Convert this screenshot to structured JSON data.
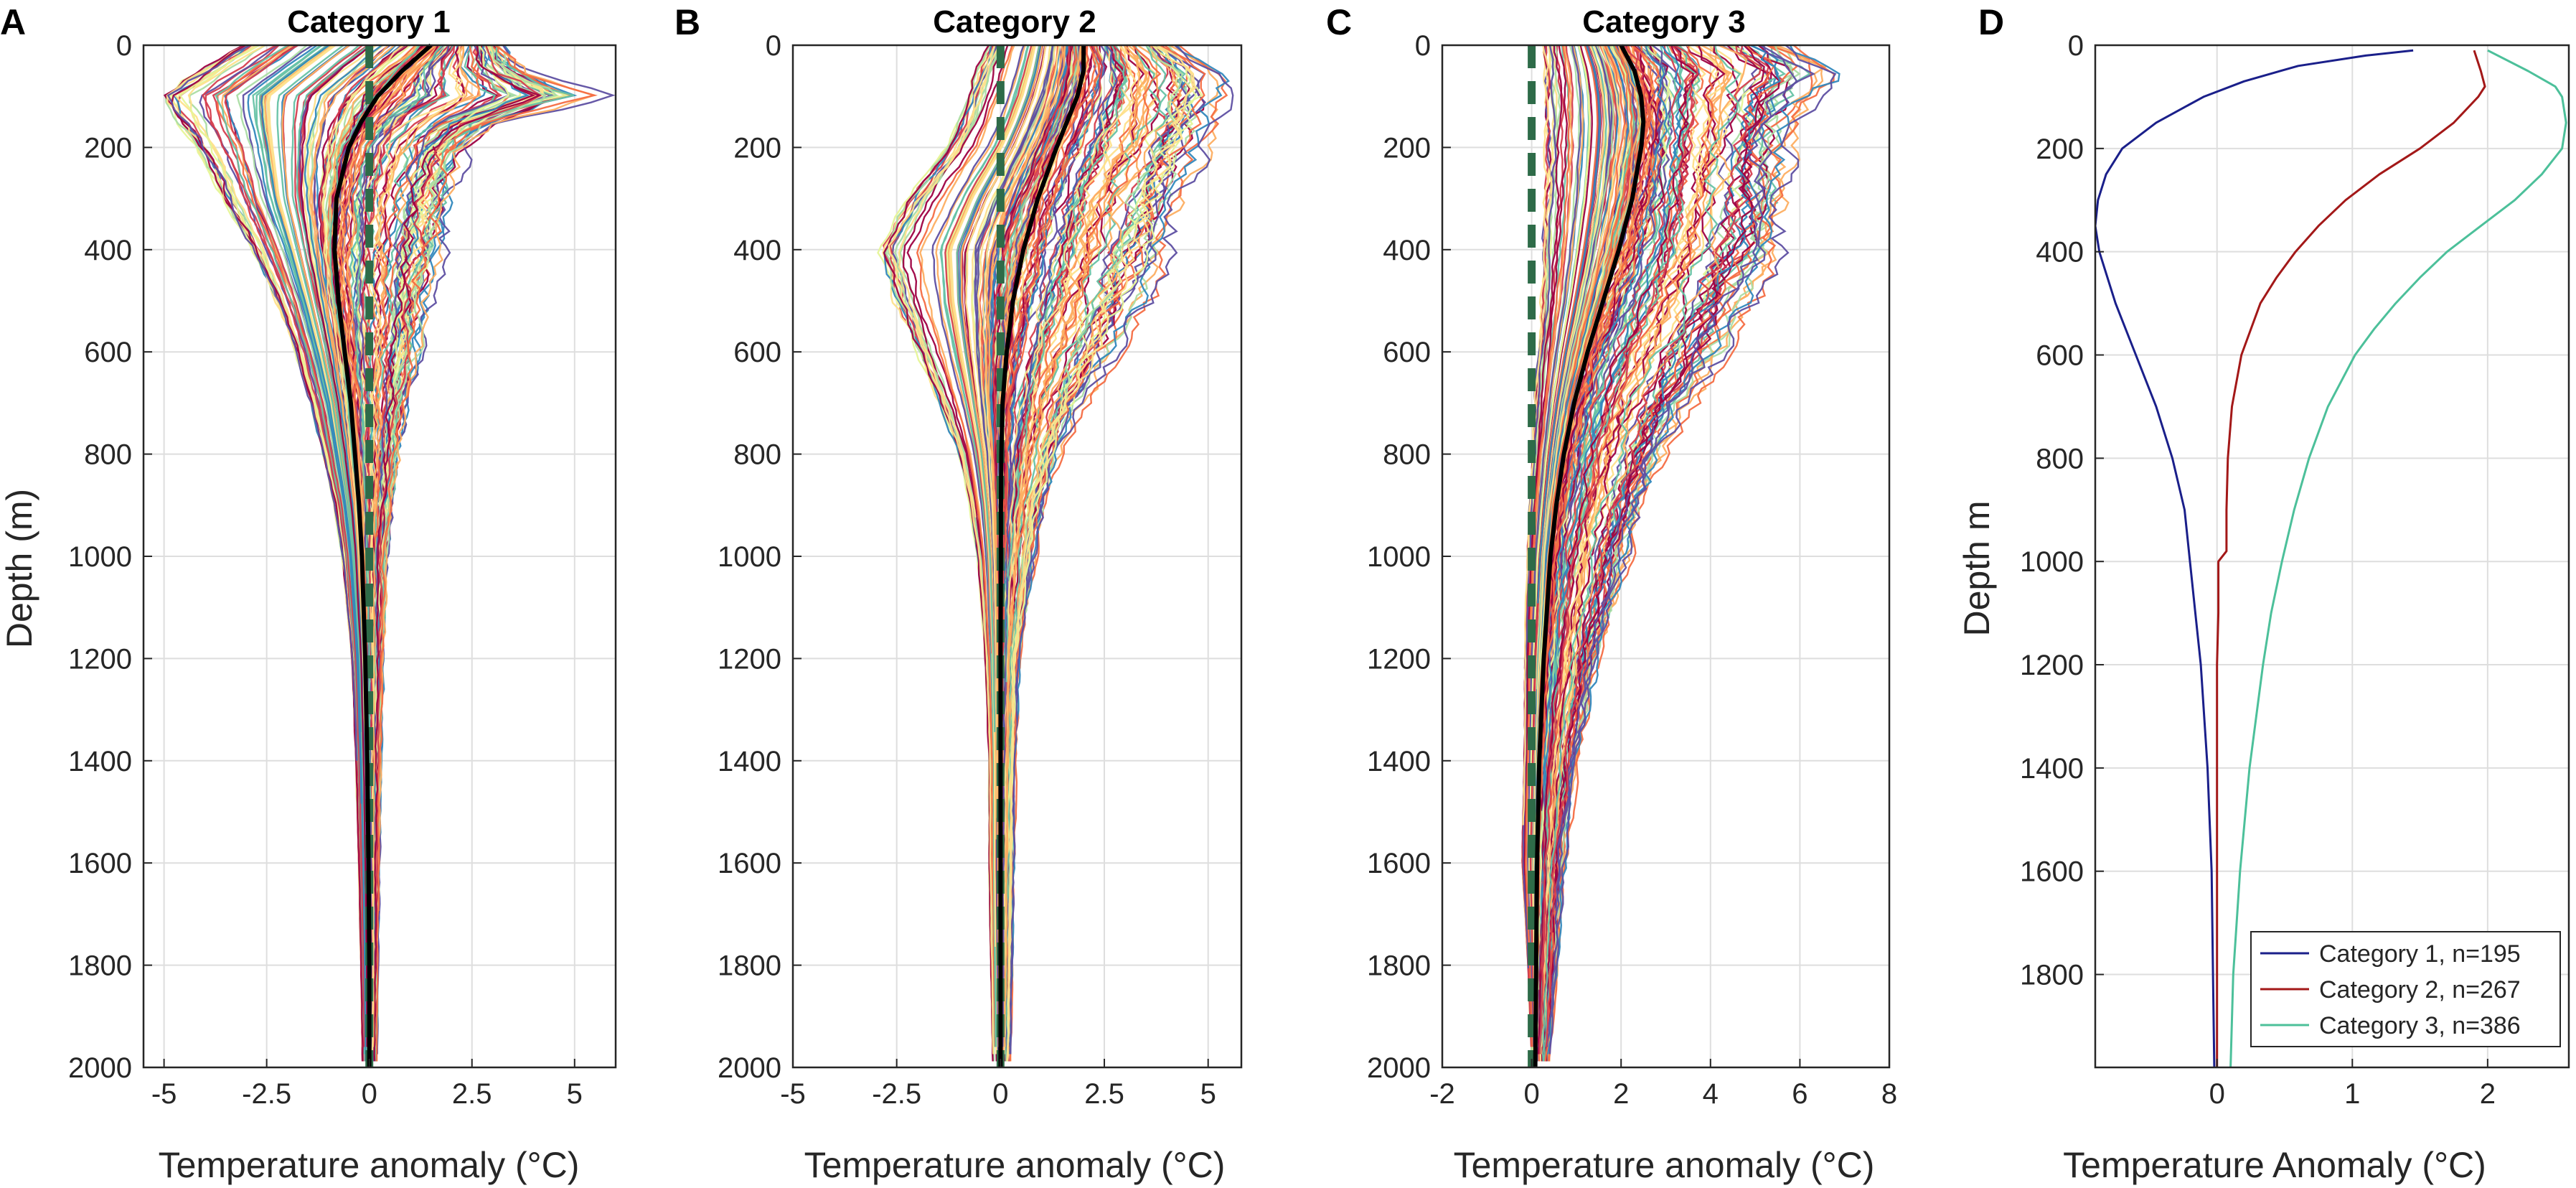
{
  "chart_data": [
    {
      "type": "line",
      "panel": "A",
      "title": "Category 1",
      "xlabel": "Temperature anomaly (°C)",
      "ylabel": "Depth (m)",
      "xlim": [
        -5.5,
        6
      ],
      "ylim": [
        0,
        2000
      ],
      "y_reversed": true,
      "grid": true,
      "xticks": [
        -5,
        -2.5,
        0,
        2.5,
        5
      ],
      "xtick_labels": [
        "-5",
        "-2.5",
        "0",
        "2.5",
        "5"
      ],
      "yticks": [
        0,
        200,
        400,
        600,
        800,
        1000,
        1200,
        1400,
        1600,
        1800,
        2000
      ],
      "ytick_labels": [
        "0",
        "200",
        "400",
        "600",
        "800",
        "1000",
        "1200",
        "1400",
        "1600",
        "1800",
        "2000"
      ],
      "profile_count": 195,
      "profile_envelope": {
        "depth": [
          0,
          50,
          100,
          150,
          200,
          300,
          400,
          500,
          600,
          700,
          800,
          900,
          1000,
          1200,
          1400,
          1600,
          1800,
          2000
        ],
        "min": [
          -3.5,
          -4.5,
          -5.5,
          -5.0,
          -4.5,
          -3.8,
          -3.0,
          -2.4,
          -1.9,
          -1.5,
          -1.2,
          -0.9,
          -0.7,
          -0.45,
          -0.35,
          -0.28,
          -0.22,
          -0.18
        ],
        "max": [
          3.5,
          4.2,
          6.0,
          3.5,
          2.6,
          2.3,
          2.0,
          1.7,
          1.4,
          1.1,
          0.9,
          0.7,
          0.5,
          0.4,
          0.33,
          0.28,
          0.24,
          0.2
        ]
      },
      "mean": {
        "name": "mean",
        "depth": [
          0,
          50,
          100,
          150,
          200,
          300,
          400,
          500,
          600,
          700,
          800,
          900,
          1000,
          1200,
          1400,
          1600,
          1800,
          2000
        ],
        "values": [
          1.5,
          0.8,
          0.2,
          -0.2,
          -0.5,
          -0.8,
          -0.85,
          -0.75,
          -0.6,
          -0.45,
          -0.35,
          -0.25,
          -0.18,
          -0.1,
          -0.05,
          -0.02,
          0,
          0
        ]
      },
      "reference": {
        "name": "zero line",
        "value": 0,
        "style": "dashed",
        "color": "#2e6b48"
      }
    },
    {
      "type": "line",
      "panel": "B",
      "title": "Category 2",
      "xlabel": "Temperature anomaly (°C)",
      "ylabel": "",
      "xlim": [
        -5,
        5.8
      ],
      "ylim": [
        0,
        2000
      ],
      "y_reversed": true,
      "grid": true,
      "xticks": [
        -5,
        -2.5,
        0,
        2.5,
        5
      ],
      "xtick_labels": [
        "-5",
        "-2.5",
        "0",
        "2.5",
        "5"
      ],
      "yticks": [
        0,
        200,
        400,
        600,
        800,
        1000,
        1200,
        1400,
        1600,
        1800,
        2000
      ],
      "ytick_labels": [
        "0",
        "200",
        "400",
        "600",
        "800",
        "1000",
        "1200",
        "1400",
        "1600",
        "1800",
        "2000"
      ],
      "profile_count": 267,
      "profile_envelope": {
        "depth": [
          0,
          50,
          100,
          150,
          200,
          300,
          400,
          500,
          600,
          700,
          800,
          900,
          1000,
          1200,
          1400,
          1600,
          1800,
          2000
        ],
        "min": [
          -0.5,
          -0.8,
          -1.0,
          -1.2,
          -1.5,
          -2.5,
          -3.2,
          -2.8,
          -2.2,
          -1.6,
          -1.1,
          -0.8,
          -0.6,
          -0.4,
          -0.3,
          -0.3,
          -0.25,
          -0.2
        ],
        "max": [
          4.5,
          5.5,
          5.6,
          5.5,
          5.2,
          4.7,
          4.3,
          3.8,
          3.0,
          2.2,
          1.6,
          1.2,
          0.9,
          0.5,
          0.4,
          0.35,
          0.3,
          0.25
        ]
      },
      "mean": {
        "name": "mean",
        "depth": [
          0,
          50,
          100,
          150,
          200,
          300,
          400,
          500,
          600,
          700,
          800,
          900,
          1000,
          1200,
          1400,
          1600,
          1800,
          2000
        ],
        "values": [
          2.0,
          2.0,
          1.85,
          1.6,
          1.35,
          0.9,
          0.55,
          0.3,
          0.15,
          0.05,
          0.02,
          0.01,
          0.01,
          0,
          0,
          0,
          0,
          0
        ]
      },
      "reference": {
        "name": "zero line",
        "value": 0,
        "style": "dashed",
        "color": "#2e6b48"
      }
    },
    {
      "type": "line",
      "panel": "C",
      "title": "Category 3",
      "xlabel": "Temperature anomaly (°C)",
      "ylabel": "",
      "xlim": [
        -2,
        8
      ],
      "ylim": [
        0,
        2000
      ],
      "y_reversed": true,
      "grid": true,
      "xticks": [
        -2,
        0,
        2,
        4,
        6,
        8
      ],
      "xtick_labels": [
        "-2",
        "0",
        "2",
        "4",
        "6",
        "8"
      ],
      "yticks": [
        0,
        200,
        400,
        600,
        800,
        1000,
        1200,
        1400,
        1600,
        1800,
        2000
      ],
      "ytick_labels": [
        "0",
        "200",
        "400",
        "600",
        "800",
        "1000",
        "1200",
        "1400",
        "1600",
        "1800",
        "2000"
      ],
      "profile_count": 386,
      "profile_envelope": {
        "depth": [
          0,
          50,
          100,
          150,
          200,
          300,
          400,
          500,
          600,
          700,
          800,
          900,
          1000,
          1200,
          1400,
          1600,
          1800,
          2000
        ],
        "min": [
          0.1,
          0.1,
          0.1,
          0.1,
          0.1,
          0.1,
          0.1,
          0.1,
          0.05,
          0.0,
          -0.05,
          -0.1,
          -0.15,
          -0.2,
          -0.2,
          -0.25,
          -0.1,
          0
        ],
        "max": [
          6.2,
          7.2,
          6.5,
          6.2,
          6.0,
          6.0,
          5.8,
          5.2,
          4.5,
          3.8,
          3.2,
          2.7,
          2.3,
          1.6,
          1.1,
          0.8,
          0.6,
          0.4
        ]
      },
      "mean": {
        "name": "mean",
        "depth": [
          0,
          50,
          100,
          150,
          200,
          300,
          400,
          500,
          600,
          700,
          800,
          900,
          1000,
          1200,
          1400,
          1600,
          1800,
          2000
        ],
        "values": [
          2.0,
          2.3,
          2.45,
          2.5,
          2.45,
          2.25,
          1.95,
          1.6,
          1.25,
          0.95,
          0.72,
          0.55,
          0.42,
          0.27,
          0.17,
          0.12,
          0.1,
          0.08
        ]
      },
      "reference": {
        "name": "zero line",
        "value": 0,
        "style": "dashed",
        "color": "#2e6b48"
      }
    },
    {
      "type": "line",
      "panel": "D",
      "title": "",
      "xlabel": "Temperature Anomaly (°C)",
      "ylabel": "Depth m",
      "xlim": [
        -0.9,
        2.6
      ],
      "ylim": [
        0,
        1980
      ],
      "y_reversed": true,
      "grid": true,
      "xticks": [
        0,
        1,
        2
      ],
      "xtick_labels": [
        "0",
        "1",
        "2"
      ],
      "yticks": [
        0,
        200,
        400,
        600,
        800,
        1000,
        1200,
        1400,
        1600,
        1800
      ],
      "ytick_labels": [
        "0",
        "200",
        "400",
        "600",
        "800",
        "1000",
        "1200",
        "1400",
        "1600",
        "1800"
      ],
      "legend": "bottom-right",
      "series": [
        {
          "name": "Category 1, n=195",
          "color": "#1a1f8a",
          "depth": [
            10,
            20,
            40,
            70,
            100,
            150,
            200,
            250,
            300,
            350,
            400,
            500,
            600,
            700,
            800,
            900,
            1000,
            1100,
            1200,
            1400,
            1600,
            1800,
            1980
          ],
          "values": [
            1.45,
            1.1,
            0.6,
            0.2,
            -0.1,
            -0.45,
            -0.7,
            -0.82,
            -0.88,
            -0.9,
            -0.87,
            -0.75,
            -0.6,
            -0.45,
            -0.33,
            -0.24,
            -0.2,
            -0.16,
            -0.12,
            -0.07,
            -0.04,
            -0.03,
            -0.02
          ]
        },
        {
          "name": "Category 2, n=267",
          "color": "#a31818",
          "depth": [
            10,
            50,
            80,
            100,
            150,
            200,
            250,
            300,
            350,
            400,
            450,
            500,
            600,
            700,
            800,
            900,
            980,
            1000,
            1100,
            1200,
            1400,
            1600,
            1800,
            1980
          ],
          "values": [
            1.9,
            1.95,
            1.98,
            1.93,
            1.75,
            1.5,
            1.2,
            0.95,
            0.75,
            0.58,
            0.44,
            0.32,
            0.18,
            0.11,
            0.08,
            0.07,
            0.07,
            0.01,
            0.01,
            0.0,
            0.0,
            0.0,
            0.0,
            0.0
          ]
        },
        {
          "name": "Category 3, n=386",
          "color": "#4cc09a",
          "depth": [
            10,
            50,
            80,
            100,
            150,
            200,
            250,
            300,
            350,
            400,
            450,
            500,
            550,
            600,
            700,
            800,
            900,
            1000,
            1100,
            1200,
            1400,
            1600,
            1800,
            1980
          ],
          "values": [
            2.0,
            2.3,
            2.5,
            2.55,
            2.58,
            2.55,
            2.4,
            2.2,
            1.95,
            1.7,
            1.5,
            1.32,
            1.16,
            1.02,
            0.82,
            0.68,
            0.57,
            0.48,
            0.4,
            0.34,
            0.24,
            0.17,
            0.12,
            0.1
          ]
        }
      ]
    }
  ],
  "panel_letters": [
    "A",
    "B",
    "C",
    "D"
  ],
  "profile_palette": [
    "#9e0142",
    "#d53e4f",
    "#f46d43",
    "#fdae61",
    "#fee08b",
    "#e6f598",
    "#abdda4",
    "#66c2a5",
    "#3288bd",
    "#5e4fa2"
  ],
  "mean_color": "#000000",
  "zero_line_color": "#2e6b48"
}
